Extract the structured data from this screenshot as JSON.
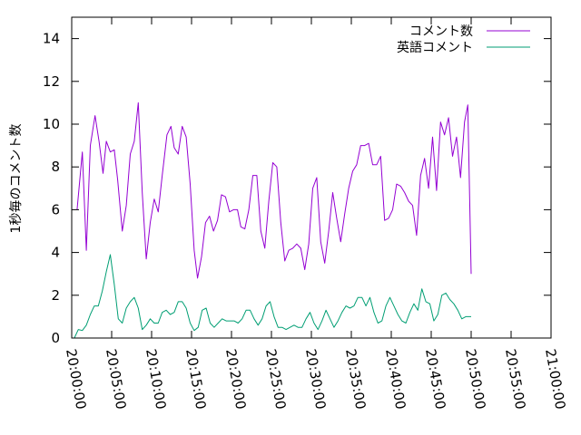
{
  "chart_data": {
    "type": "line",
    "title": "",
    "xlabel": "",
    "ylabel": "1秒毎のコメント数",
    "xlim": [
      0,
      3600
    ],
    "ylim": [
      0,
      15
    ],
    "xticks": [
      {
        "x": 0,
        "label": "20:00:00"
      },
      {
        "x": 300,
        "label": "20:05:00"
      },
      {
        "x": 600,
        "label": "20:10:00"
      },
      {
        "x": 900,
        "label": "20:15:00"
      },
      {
        "x": 1200,
        "label": "20:20:00"
      },
      {
        "x": 1500,
        "label": "20:25:00"
      },
      {
        "x": 1800,
        "label": "20:30:00"
      },
      {
        "x": 2100,
        "label": "20:35:00"
      },
      {
        "x": 2400,
        "label": "20:40:00"
      },
      {
        "x": 2700,
        "label": "20:45:00"
      },
      {
        "x": 3000,
        "label": "20:50:00"
      },
      {
        "x": 3300,
        "label": "20:55:00"
      },
      {
        "x": 3600,
        "label": "21:00:00"
      }
    ],
    "yticks": [
      0,
      2,
      4,
      6,
      8,
      10,
      12,
      14
    ],
    "grid": false,
    "legend_position": "top-right",
    "series": [
      {
        "name": "コメント数",
        "color": "#9400d3",
        "points": [
          [
            40,
            6.0
          ],
          [
            80,
            8.7
          ],
          [
            110,
            4.1
          ],
          [
            140,
            9.0
          ],
          [
            175,
            10.4
          ],
          [
            205,
            9.2
          ],
          [
            235,
            7.7
          ],
          [
            260,
            9.2
          ],
          [
            290,
            8.7
          ],
          [
            320,
            8.8
          ],
          [
            345,
            7.4
          ],
          [
            380,
            5.0
          ],
          [
            410,
            6.2
          ],
          [
            440,
            8.6
          ],
          [
            470,
            9.2
          ],
          [
            500,
            11.0
          ],
          [
            530,
            6.8
          ],
          [
            560,
            3.7
          ],
          [
            590,
            5.4
          ],
          [
            620,
            6.5
          ],
          [
            650,
            5.9
          ],
          [
            680,
            7.6
          ],
          [
            715,
            9.5
          ],
          [
            745,
            9.9
          ],
          [
            770,
            8.9
          ],
          [
            800,
            8.6
          ],
          [
            830,
            9.9
          ],
          [
            860,
            9.4
          ],
          [
            890,
            7.2
          ],
          [
            920,
            4.1
          ],
          [
            945,
            2.8
          ],
          [
            975,
            3.8
          ],
          [
            1005,
            5.4
          ],
          [
            1035,
            5.7
          ],
          [
            1065,
            5.0
          ],
          [
            1095,
            5.5
          ],
          [
            1125,
            6.7
          ],
          [
            1155,
            6.6
          ],
          [
            1185,
            5.9
          ],
          [
            1215,
            6.0
          ],
          [
            1245,
            6.0
          ],
          [
            1270,
            5.2
          ],
          [
            1300,
            5.1
          ],
          [
            1330,
            6.0
          ],
          [
            1360,
            7.6
          ],
          [
            1390,
            7.6
          ],
          [
            1420,
            5.0
          ],
          [
            1450,
            4.2
          ],
          [
            1480,
            6.4
          ],
          [
            1510,
            8.2
          ],
          [
            1540,
            8.0
          ],
          [
            1570,
            5.4
          ],
          [
            1600,
            3.6
          ],
          [
            1630,
            4.1
          ],
          [
            1660,
            4.2
          ],
          [
            1690,
            4.4
          ],
          [
            1720,
            4.2
          ],
          [
            1750,
            3.2
          ],
          [
            1780,
            4.4
          ],
          [
            1810,
            7.0
          ],
          [
            1840,
            7.5
          ],
          [
            1870,
            4.5
          ],
          [
            1900,
            3.5
          ],
          [
            1930,
            5.0
          ],
          [
            1960,
            6.8
          ],
          [
            1990,
            5.6
          ],
          [
            2020,
            4.5
          ],
          [
            2050,
            5.8
          ],
          [
            2080,
            7.0
          ],
          [
            2110,
            7.8
          ],
          [
            2140,
            8.1
          ],
          [
            2170,
            9.0
          ],
          [
            2200,
            9.0
          ],
          [
            2230,
            9.1
          ],
          [
            2260,
            8.1
          ],
          [
            2290,
            8.1
          ],
          [
            2320,
            8.5
          ],
          [
            2350,
            5.5
          ],
          [
            2380,
            5.6
          ],
          [
            2410,
            6.0
          ],
          [
            2440,
            7.2
          ],
          [
            2470,
            7.1
          ],
          [
            2500,
            6.8
          ],
          [
            2530,
            6.4
          ],
          [
            2560,
            6.2
          ],
          [
            2590,
            4.8
          ],
          [
            2620,
            7.6
          ],
          [
            2650,
            8.4
          ],
          [
            2680,
            7.0
          ],
          [
            2710,
            9.4
          ],
          [
            2740,
            6.9
          ],
          [
            2770,
            10.1
          ],
          [
            2800,
            9.5
          ],
          [
            2830,
            10.3
          ],
          [
            2860,
            8.5
          ],
          [
            2890,
            9.4
          ],
          [
            2920,
            7.5
          ],
          [
            2950,
            10.1
          ],
          [
            2975,
            10.9
          ],
          [
            3000,
            3.0
          ]
        ]
      },
      {
        "name": "英語コメント",
        "color": "#009e73",
        "points": [
          [
            20,
            0.0
          ],
          [
            50,
            0.4
          ],
          [
            80,
            0.35
          ],
          [
            110,
            0.6
          ],
          [
            140,
            1.1
          ],
          [
            170,
            1.5
          ],
          [
            200,
            1.5
          ],
          [
            230,
            2.2
          ],
          [
            260,
            3.1
          ],
          [
            290,
            3.9
          ],
          [
            320,
            2.5
          ],
          [
            350,
            0.9
          ],
          [
            380,
            0.7
          ],
          [
            410,
            1.4
          ],
          [
            440,
            1.7
          ],
          [
            470,
            1.9
          ],
          [
            500,
            1.4
          ],
          [
            530,
            0.4
          ],
          [
            560,
            0.6
          ],
          [
            590,
            0.9
          ],
          [
            620,
            0.7
          ],
          [
            650,
            0.7
          ],
          [
            680,
            1.2
          ],
          [
            710,
            1.3
          ],
          [
            740,
            1.1
          ],
          [
            770,
            1.2
          ],
          [
            800,
            1.7
          ],
          [
            830,
            1.7
          ],
          [
            860,
            1.4
          ],
          [
            890,
            0.7
          ],
          [
            920,
            0.35
          ],
          [
            950,
            0.5
          ],
          [
            980,
            1.3
          ],
          [
            1010,
            1.4
          ],
          [
            1040,
            0.7
          ],
          [
            1070,
            0.5
          ],
          [
            1100,
            0.7
          ],
          [
            1130,
            0.9
          ],
          [
            1160,
            0.8
          ],
          [
            1190,
            0.8
          ],
          [
            1220,
            0.8
          ],
          [
            1250,
            0.7
          ],
          [
            1280,
            0.9
          ],
          [
            1310,
            1.3
          ],
          [
            1340,
            1.3
          ],
          [
            1370,
            0.9
          ],
          [
            1400,
            0.6
          ],
          [
            1430,
            0.9
          ],
          [
            1460,
            1.5
          ],
          [
            1490,
            1.7
          ],
          [
            1520,
            1.0
          ],
          [
            1550,
            0.5
          ],
          [
            1580,
            0.5
          ],
          [
            1610,
            0.4
          ],
          [
            1640,
            0.5
          ],
          [
            1670,
            0.6
          ],
          [
            1700,
            0.5
          ],
          [
            1730,
            0.5
          ],
          [
            1760,
            0.9
          ],
          [
            1790,
            1.2
          ],
          [
            1820,
            0.7
          ],
          [
            1850,
            0.4
          ],
          [
            1880,
            0.8
          ],
          [
            1910,
            1.3
          ],
          [
            1940,
            0.9
          ],
          [
            1970,
            0.5
          ],
          [
            2000,
            0.8
          ],
          [
            2030,
            1.2
          ],
          [
            2060,
            1.5
          ],
          [
            2090,
            1.4
          ],
          [
            2120,
            1.5
          ],
          [
            2150,
            1.9
          ],
          [
            2180,
            1.9
          ],
          [
            2210,
            1.5
          ],
          [
            2240,
            1.9
          ],
          [
            2270,
            1.2
          ],
          [
            2300,
            0.7
          ],
          [
            2330,
            0.8
          ],
          [
            2360,
            1.5
          ],
          [
            2390,
            1.9
          ],
          [
            2420,
            1.5
          ],
          [
            2450,
            1.1
          ],
          [
            2480,
            0.8
          ],
          [
            2510,
            0.7
          ],
          [
            2540,
            1.2
          ],
          [
            2570,
            1.6
          ],
          [
            2600,
            1.3
          ],
          [
            2630,
            2.3
          ],
          [
            2660,
            1.7
          ],
          [
            2690,
            1.6
          ],
          [
            2720,
            0.8
          ],
          [
            2750,
            1.1
          ],
          [
            2780,
            2.0
          ],
          [
            2810,
            2.1
          ],
          [
            2840,
            1.8
          ],
          [
            2870,
            1.6
          ],
          [
            2900,
            1.3
          ],
          [
            2930,
            0.9
          ],
          [
            2960,
            1.0
          ],
          [
            3000,
            1.0
          ]
        ]
      }
    ]
  }
}
